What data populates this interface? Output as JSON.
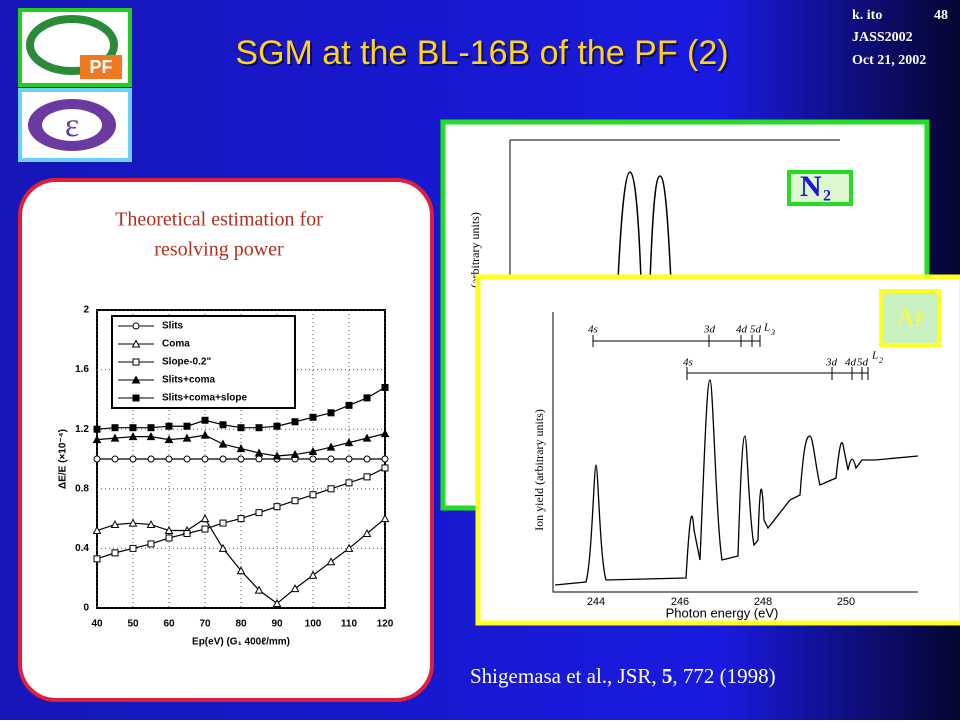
{
  "slide": {
    "title": "SGM at the BL-16B of the PF (2)",
    "meta": [
      "k. ito",
      "48",
      "JASS2002",
      "Oct 21, 2002"
    ],
    "panel_caption": [
      "Theoretical estimation for",
      "resolving power"
    ],
    "citation": {
      "before": "Shigemasa et al., JSR, ",
      "volume": "5",
      "after": ", 772 (1998)"
    },
    "n2_plot": {
      "label": "N",
      "label_sub": "2",
      "ylabel": "(arbitrary units)"
    },
    "ar_plot": {
      "label": "Ar",
      "ylabel": "Ion yield (arbitrary units)",
      "xlabel": "Photon energy (eV)",
      "xticks": [
        "244",
        "246",
        "248",
        "250"
      ],
      "levels": [
        "4s",
        "3d",
        "4d",
        "5d",
        "L",
        "3",
        "4s",
        "3d",
        "4d",
        "5d",
        "L",
        "2"
      ]
    }
  },
  "chart_data": {
    "type": "line",
    "x": [
      40,
      45,
      50,
      55,
      60,
      65,
      70,
      75,
      80,
      85,
      90,
      95,
      100,
      105,
      110,
      115,
      120
    ],
    "series": [
      {
        "name": "Slits",
        "color": "#000000",
        "marker": "circle",
        "values": [
          1.0,
          1.0,
          1.0,
          1.0,
          1.0,
          1.0,
          1.0,
          1.0,
          1.0,
          1.0,
          1.0,
          1.0,
          1.0,
          1.0,
          1.0,
          1.0,
          1.0
        ]
      },
      {
        "name": "Coma",
        "color": "#000000",
        "marker": "triangle",
        "values": [
          0.52,
          0.56,
          0.57,
          0.56,
          0.52,
          0.52,
          0.6,
          0.4,
          0.25,
          0.12,
          0.03,
          0.13,
          0.22,
          0.31,
          0.4,
          0.5,
          0.6
        ]
      },
      {
        "name": "Slope-0.2\"",
        "color": "#000000",
        "marker": "square",
        "values": [
          0.33,
          0.37,
          0.4,
          0.43,
          0.47,
          0.5,
          0.53,
          0.57,
          0.6,
          0.64,
          0.68,
          0.72,
          0.76,
          0.8,
          0.84,
          0.88,
          0.94
        ]
      },
      {
        "name": "Slits+coma",
        "color": "#000000",
        "marker": "triangle-filled",
        "values": [
          1.13,
          1.14,
          1.15,
          1.15,
          1.13,
          1.14,
          1.16,
          1.1,
          1.07,
          1.04,
          1.02,
          1.03,
          1.05,
          1.08,
          1.11,
          1.14,
          1.17
        ]
      },
      {
        "name": "Slits+coma+slope",
        "color": "#000000",
        "marker": "square-filled",
        "values": [
          1.2,
          1.21,
          1.21,
          1.21,
          1.22,
          1.22,
          1.26,
          1.23,
          1.21,
          1.21,
          1.22,
          1.25,
          1.28,
          1.31,
          1.36,
          1.41,
          1.48
        ]
      }
    ],
    "xlim": [
      40,
      120
    ],
    "xticks": [
      40,
      50,
      60,
      70,
      80,
      90,
      100,
      110,
      120
    ],
    "ylim": [
      0,
      2
    ],
    "yticks": [
      0,
      0.4,
      0.8,
      1.2,
      1.6,
      2
    ],
    "xlabel": "Ep(eV)  (G₁ 400ℓ/mm)",
    "ylabel": "ΔE/E (×10⁻⁴)",
    "legend": "upper left",
    "grid": true
  }
}
